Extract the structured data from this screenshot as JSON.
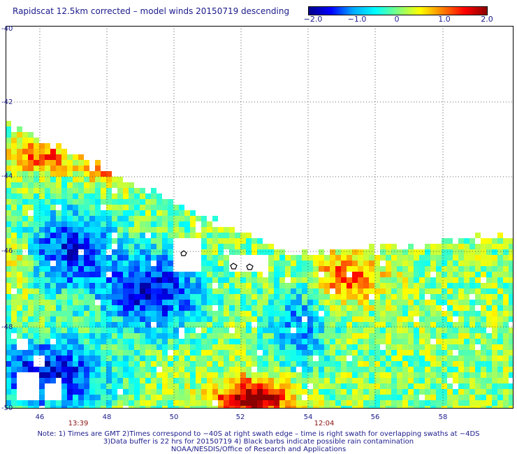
{
  "title": "Rapidscat 12.5km corrected – model winds 20150719 descending",
  "colorbar": {
    "ticks": [
      "−2.0",
      "−1.0",
      "0",
      "1.0",
      "2.0"
    ],
    "range": [
      -2.0,
      2.0
    ],
    "colors": [
      "#00008b",
      "#0000ff",
      "#00aaff",
      "#00ffff",
      "#7fff7f",
      "#ffff00",
      "#ff8000",
      "#ff0000",
      "#8b0000"
    ]
  },
  "map": {
    "lat_labels": [
      "-40",
      "-42",
      "-44",
      "-46",
      "-48",
      "-50"
    ],
    "lon_labels": [
      "46",
      "48",
      "50",
      "52",
      "54",
      "56",
      "58"
    ],
    "times": [
      "13:39",
      "12:04"
    ],
    "lat_range": [
      -40,
      -50
    ],
    "lon_range": [
      44.9,
      60.0
    ],
    "grid": true
  },
  "notes": {
    "line1": "Note: 1) Times are GMT 2)Times correspond to −40S at right swath edge – time is right swath for overlapping swaths at −4DS",
    "line2": "3)Data buffer is 22 hrs for 20150719 4) Black barbs indicate possible rain contamination",
    "line3": "NOAA/NESDIS/Office of Research and Applications"
  }
}
